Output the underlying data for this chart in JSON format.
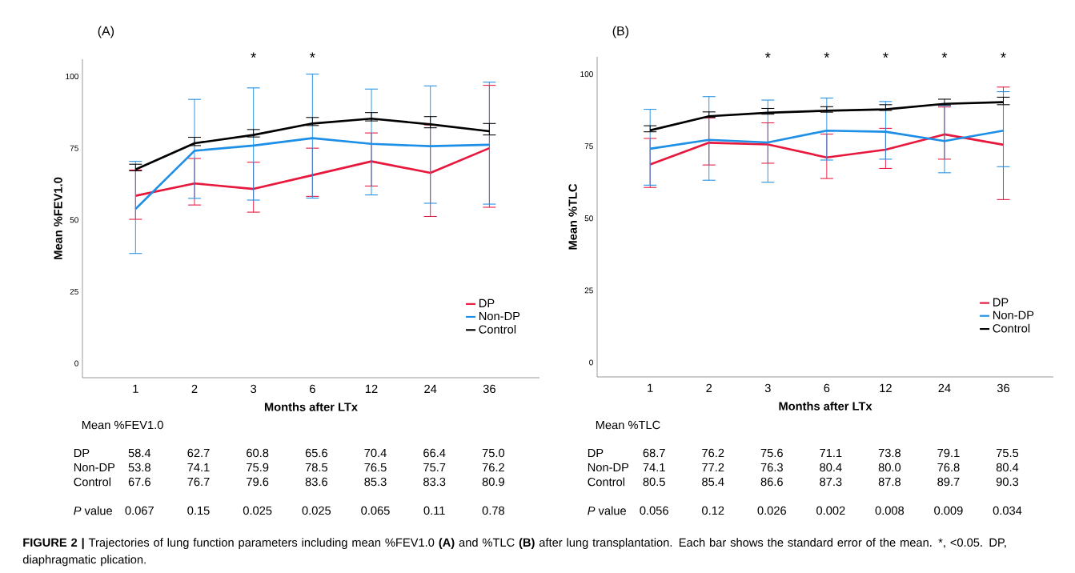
{
  "chart_data": [
    {
      "type": "line",
      "title": "(A)",
      "xlabel": "Months after LTx",
      "ylabel": "Mean %FEV1.0",
      "categories": [
        "1",
        "2",
        "3",
        "6",
        "12",
        "24",
        "36"
      ],
      "series": [
        {
          "name": "DP",
          "color": "#e8173c",
          "values": [
            58.4,
            62.7,
            60.8,
            65.6,
            70.4,
            66.4,
            75.0
          ],
          "value_labels": [
            "58.4",
            "62.7",
            "60.8",
            "65.6",
            "70.4",
            "66.4",
            "75.0"
          ],
          "errors": [
            [
              50.2,
              67.4
            ],
            [
              55.2,
              71.4
            ],
            [
              52.7,
              70.1
            ],
            [
              58.2,
              75.0
            ],
            [
              61.8,
              80.3
            ],
            [
              51.2,
              83.1
            ],
            [
              54.4,
              96.9
            ]
          ]
        },
        {
          "name": "Non-DP",
          "color": "#1e8fe6",
          "values": [
            53.8,
            74.1,
            75.9,
            78.5,
            76.5,
            75.7,
            76.2
          ],
          "value_labels": [
            "53.8",
            "74.1",
            "75.9",
            "78.5",
            "76.5",
            "75.7",
            "76.2"
          ],
          "errors": [
            [
              38.3,
              70.4
            ],
            [
              57.5,
              92.0
            ],
            [
              56.9,
              96.0
            ],
            [
              57.6,
              100.8
            ],
            [
              58.7,
              95.6
            ],
            [
              55.8,
              96.7
            ],
            [
              55.5,
              98.0
            ]
          ]
        },
        {
          "name": "Control",
          "color": "#000000",
          "values": [
            67.6,
            76.7,
            79.6,
            83.6,
            85.3,
            83.3,
            80.9
          ],
          "value_labels": [
            "67.6",
            "76.7",
            "79.6",
            "83.6",
            "85.3",
            "83.3",
            "80.9"
          ],
          "errors": [
            [
              67.1,
              69.4
            ],
            [
              75.9,
              78.8
            ],
            [
              78.9,
              81.5
            ],
            [
              82.9,
              85.7
            ],
            [
              84.5,
              87.4
            ],
            [
              82.1,
              86.0
            ],
            [
              79.6,
              83.6
            ]
          ]
        }
      ],
      "ylim": [
        -5,
        106
      ],
      "yticks": [
        0,
        25,
        50,
        75,
        100
      ],
      "grid": false,
      "legend": "bottom right",
      "annotations": [
        "*",
        "*",
        "*P* value",
        "0.067",
        "0.15",
        "0.025",
        "0.025",
        "0.065",
        "0.11",
        "0.78",
        "**FIGURE 2 |** Trajectories of lung function parameters including mean %FEV1.0 **(A)** and %TLC **(B)** after lung transplantation. Each bar shows the standard error of the mean. *, <0.05. DP, diaphragmatic plication."
      ]
    },
    {
      "type": "line",
      "title": "(B)",
      "xlabel": "Months after LTx",
      "ylabel": "Mean %TLC",
      "categories": [
        "1",
        "2",
        "3",
        "6",
        "12",
        "24",
        "36"
      ],
      "series": [
        {
          "name": "DP",
          "color": "#e8173c",
          "values": [
            68.7,
            76.2,
            75.6,
            71.1,
            73.8,
            79.1,
            75.5
          ],
          "value_labels": [
            "68.7",
            "76.2",
            "75.6",
            "71.1",
            "73.8",
            "79.1",
            "75.5"
          ],
          "errors": [
            [
              60.7,
              77.7
            ],
            [
              68.5,
              84.8
            ],
            [
              69.1,
              83.1
            ],
            [
              63.8,
              79.2
            ],
            [
              67.3,
              81.2
            ],
            [
              70.5,
              88.6
            ],
            [
              56.5,
              95.5
            ]
          ]
        },
        {
          "name": "Non-DP",
          "color": "#1e8fe6",
          "values": [
            74.1,
            77.2,
            76.3,
            80.4,
            80.0,
            76.8,
            80.4
          ],
          "value_labels": [
            "74.1",
            "77.2",
            "76.3",
            "80.4",
            "80.0",
            "76.8",
            "80.4"
          ],
          "errors": [
            [
              61.5,
              87.8
            ],
            [
              63.2,
              92.2
            ],
            [
              62.5,
              91.0
            ],
            [
              70.2,
              91.7
            ],
            [
              70.5,
              90.5
            ],
            [
              65.8,
              89.1
            ],
            [
              67.9,
              93.9
            ]
          ]
        },
        {
          "name": "Control",
          "color": "#000000",
          "values": [
            80.5,
            85.4,
            86.6,
            87.3,
            87.8,
            89.7,
            90.3
          ],
          "value_labels": [
            "80.5",
            "85.4",
            "86.6",
            "87.3",
            "87.8",
            "89.7",
            "90.3"
          ],
          "errors": [
            [
              80.0,
              82.1
            ],
            [
              85.0,
              86.9
            ],
            [
              86.1,
              88.1
            ],
            [
              86.8,
              88.7
            ],
            [
              87.4,
              89.4
            ],
            [
              89.3,
              91.3
            ],
            [
              89.4,
              92.0
            ]
          ]
        }
      ],
      "ylim": [
        -5,
        106
      ],
      "yticks": [
        0,
        25,
        50,
        75,
        100
      ],
      "grid": false,
      "legend": "bottom right",
      "annotations": [
        "*",
        "*",
        "*",
        "*",
        "*",
        "*P* value",
        "0.056",
        "0.12",
        "0.026",
        "0.002",
        "0.008",
        "0.009",
        "0.034"
      ]
    }
  ]
}
